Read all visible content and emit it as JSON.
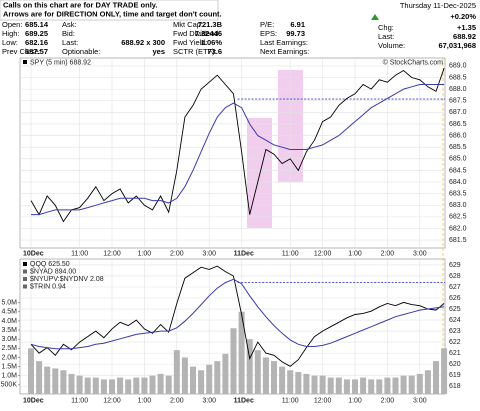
{
  "header": {
    "notice": [
      "Calls on this chart are for DAY TRADE only.",
      "Arrows are for DIRECTION ONLY, time and target don't count."
    ],
    "rows": [
      [
        {
          "label": "Open:",
          "value": "685.14"
        },
        {
          "label": "Ask:"
        },
        {
          "label": "Mkt Cap:",
          "value": "721.3B"
        },
        {
          "label": "P/E:",
          "value": "6.91"
        }
      ],
      [
        {
          "label": "High:",
          "value": "689.25"
        },
        {
          "label": "Bid:"
        },
        {
          "label": "Fwd Dividend:",
          "value": "7.32446"
        },
        {
          "label": "EPS:",
          "value": "99.73"
        }
      ],
      [
        {
          "label": "Low:",
          "value": "682.16"
        },
        {
          "label": "Last:",
          "value": "688.92 x 300"
        },
        {
          "label": "Fwd Yield:",
          "value": "1.06%"
        },
        {
          "label": "Last Earnings:"
        }
      ],
      [
        {
          "label": "Prev Close:",
          "value": "687.57"
        },
        {
          "label": "Optionable:",
          "value": "yes"
        },
        {
          "label": "SCTR (ETF):",
          "value": "73.6"
        },
        {
          "label": "Next Earnings:"
        }
      ]
    ],
    "date": "Thursday 11-Dec-2025",
    "change_pct": "+0.20%",
    "right_rows": [
      {
        "label": "Chg:",
        "value": "+1.35"
      },
      {
        "label": "Last:",
        "value": "688.92"
      },
      {
        "label": "Volume:",
        "value": "67,031,968"
      }
    ]
  },
  "chart_data": [
    {
      "type": "line",
      "title": "SPY (5 min) 688.92",
      "credit": "© StockCharts.com",
      "categories": [
        "10Dec",
        null,
        null,
        null,
        null,
        null,
        "11:00",
        null,
        null,
        null,
        "12:00",
        null,
        null,
        null,
        "1:00",
        null,
        null,
        null,
        "2:00",
        null,
        null,
        null,
        "3:00",
        null,
        null,
        null,
        "11Dec",
        null,
        null,
        null,
        null,
        null,
        "11:00",
        null,
        null,
        null,
        "12:00",
        null,
        null,
        null,
        "1:00",
        null,
        null,
        null,
        "2:00",
        null,
        null,
        null,
        "3:00",
        null,
        null,
        null
      ],
      "series": [
        {
          "color": "#000000",
          "values": [
            683.2,
            682.6,
            683.4,
            683.0,
            682.3,
            682.8,
            682.9,
            683.3,
            683.8,
            683.2,
            683.5,
            683.7,
            683.1,
            683.4,
            683.0,
            682.8,
            683.4,
            682.7,
            684.5,
            686.8,
            687.3,
            688.0,
            688.3,
            688.6,
            688.2,
            687.8,
            685.3,
            682.6,
            684.0,
            685.4,
            685.2,
            684.8,
            685.0,
            684.5,
            685.3,
            685.8,
            686.6,
            686.8,
            687.3,
            687.6,
            687.8,
            688.2,
            688.0,
            688.4,
            688.3,
            688.6,
            688.8,
            688.5,
            688.4,
            688.1,
            687.9,
            688.9
          ]
        },
        {
          "color": "#3a3aa8",
          "values": [
            682.6,
            682.6,
            682.7,
            682.8,
            682.8,
            682.8,
            682.8,
            682.9,
            683.0,
            683.1,
            683.2,
            683.3,
            683.3,
            683.3,
            683.3,
            683.2,
            683.2,
            683.1,
            683.3,
            683.8,
            684.5,
            685.3,
            686.1,
            686.8,
            687.2,
            687.4,
            687.2,
            686.5,
            686.0,
            685.8,
            685.6,
            685.5,
            685.4,
            685.4,
            685.4,
            685.5,
            685.6,
            685.8,
            686.0,
            686.3,
            686.6,
            686.9,
            687.2,
            687.4,
            687.6,
            687.8,
            688.0,
            688.1,
            688.2,
            688.2,
            688.2,
            688.2
          ]
        }
      ],
      "reference_line": 687.57,
      "ylim": [
        681.16,
        689.34
      ],
      "yticks": [
        {
          "value": 681.5,
          "label": "681.5"
        },
        {
          "value": 682,
          "label": "682.0"
        },
        {
          "value": 682.5,
          "label": "682.5"
        },
        {
          "value": 683,
          "label": "683.0"
        },
        {
          "value": 683.5,
          "label": "683.5"
        },
        {
          "value": 684,
          "label": "684.0"
        },
        {
          "value": 684.5,
          "label": "684.5"
        },
        {
          "value": 685,
          "label": "685.0"
        },
        {
          "value": 685.5,
          "label": "685.5"
        },
        {
          "value": 686,
          "label": "686.0"
        },
        {
          "value": 686.5,
          "label": "686.5"
        },
        {
          "value": 687,
          "label": "687.0"
        },
        {
          "value": 687.5,
          "label": "687.5"
        },
        {
          "value": 688,
          "label": "688.0"
        },
        {
          "value": 688.5,
          "label": "688.5"
        },
        {
          "value": 689,
          "label": "689.0"
        }
      ],
      "grid": true
    },
    {
      "type": "line",
      "legend": [
        "QQQ 625.50",
        "$NYAD 894.00",
        "$NYUPV:$NYDNV 2.08",
        "$TRIN 0.94"
      ],
      "categories": [
        "10Dec",
        null,
        null,
        null,
        null,
        null,
        "11:00",
        null,
        null,
        null,
        "12:00",
        null,
        null,
        null,
        "1:00",
        null,
        null,
        null,
        "2:00",
        null,
        null,
        null,
        "3:00",
        null,
        null,
        null,
        "11Dec",
        null,
        null,
        null,
        null,
        null,
        "11:00",
        null,
        null,
        null,
        "12:00",
        null,
        null,
        null,
        "1:00",
        null,
        null,
        null,
        "2:00",
        null,
        null,
        null,
        "3:00",
        null,
        null,
        null
      ],
      "series": [
        {
          "color": "#000000",
          "axis": "y2",
          "values": [
            621.8,
            621.0,
            621.5,
            620.8,
            621.8,
            621.3,
            622.0,
            622.5,
            623.0,
            622.4,
            623.2,
            623.8,
            623.5,
            624.0,
            623.2,
            622.8,
            623.6,
            622.9,
            625.5,
            627.8,
            628.3,
            628.8,
            628.6,
            628.9,
            628.4,
            628.0,
            624.5,
            620.5,
            622.0,
            621.0,
            620.8,
            620.2,
            619.8,
            620.4,
            621.5,
            622.5,
            623.0,
            623.4,
            623.8,
            624.2,
            624.5,
            624.6,
            624.8,
            625.2,
            625.5,
            625.3,
            625.6,
            625.4,
            625.3,
            625.0,
            624.9,
            625.5
          ]
        },
        {
          "color": "#3a3aa8",
          "axis": "y2",
          "values": [
            621.8,
            621.6,
            621.5,
            621.4,
            621.4,
            621.4,
            621.5,
            621.6,
            621.8,
            621.9,
            622.1,
            622.3,
            622.5,
            622.7,
            622.8,
            622.9,
            623.0,
            623.0,
            623.3,
            623.9,
            624.6,
            625.4,
            626.2,
            626.9,
            627.4,
            627.7,
            627.3,
            626.2,
            625.2,
            624.3,
            623.5,
            622.8,
            622.2,
            621.8,
            621.6,
            621.6,
            621.7,
            621.9,
            622.2,
            622.5,
            622.8,
            623.1,
            623.4,
            623.7,
            624.0,
            624.3,
            624.5,
            624.7,
            624.9,
            625.0,
            625.1,
            625.2
          ]
        }
      ],
      "volume": {
        "color": "#b4b4b4",
        "values": [
          2.5,
          1.8,
          1.5,
          1.4,
          1.3,
          1.1,
          1.0,
          0.9,
          0.9,
          0.8,
          0.8,
          0.9,
          0.8,
          0.9,
          0.9,
          1.0,
          1.1,
          1.0,
          2.4,
          2.0,
          1.5,
          1.3,
          1.6,
          1.8,
          2.2,
          3.6,
          4.5,
          3.0,
          2.4,
          2.0,
          1.8,
          1.5,
          1.3,
          1.2,
          1.1,
          1.0,
          1.0,
          0.9,
          0.9,
          0.8,
          0.8,
          0.9,
          0.8,
          0.8,
          0.9,
          0.9,
          1.0,
          1.0,
          1.1,
          1.3,
          1.8,
          2.5
        ]
      },
      "reference_line": 627.4,
      "ylim": [
        0,
        7.39
      ],
      "yticks": [
        {
          "value": 0.5,
          "label": "500K"
        },
        {
          "value": 1,
          "label": "1.0M"
        },
        {
          "value": 1.5,
          "label": "1.5M"
        },
        {
          "value": 2,
          "label": "2.0M"
        },
        {
          "value": 2.5,
          "label": "2.5M"
        },
        {
          "value": 3,
          "label": "3.0M"
        },
        {
          "value": 3.5,
          "label": "3.5M"
        },
        {
          "value": 4,
          "label": "4.0M"
        },
        {
          "value": 4.5,
          "label": "4.5M"
        },
        {
          "value": 5,
          "label": "5.0M"
        }
      ],
      "y2lim": [
        617.29,
        629.54
      ],
      "y2ticks": [
        618,
        619,
        620,
        621,
        622,
        623,
        624,
        625,
        626,
        627,
        628,
        629
      ],
      "grid": true
    }
  ]
}
